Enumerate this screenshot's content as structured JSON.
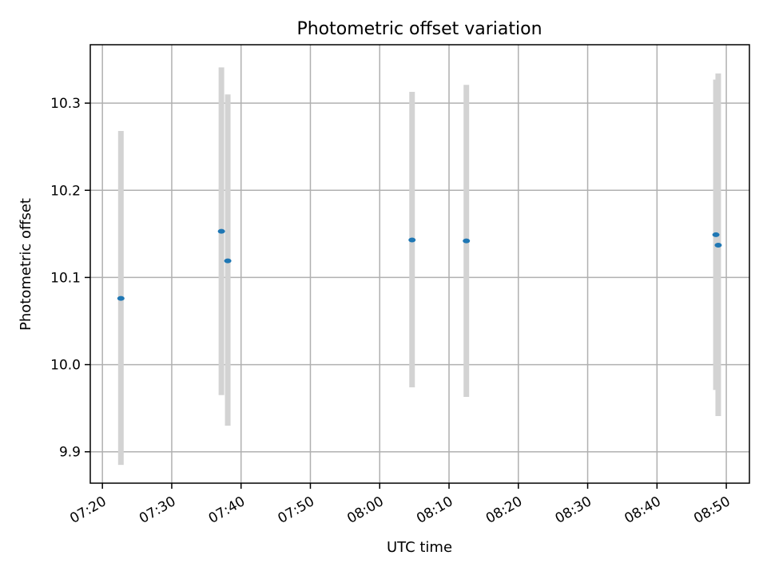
{
  "chart_data": {
    "type": "scatter",
    "title": "Photometric offset variation",
    "xlabel": "UTC time",
    "ylabel": "Photometric offset",
    "grid": true,
    "xlim": [
      "07:18:15",
      "08:53:20"
    ],
    "ylim": [
      9.864,
      10.367
    ],
    "x_ticks": [
      "07:20",
      "07:30",
      "07:40",
      "07:50",
      "08:00",
      "08:10",
      "08:20",
      "08:30",
      "08:40",
      "08:50"
    ],
    "y_ticks": [
      9.9,
      10.0,
      10.1,
      10.2,
      10.3
    ],
    "y_tick_labels": [
      "9.9",
      "10.0",
      "10.1",
      "10.2",
      "10.3"
    ],
    "marker_color": "#1f77b4",
    "errorbar_color": "#d3d3d3",
    "points": [
      {
        "x": "07:22:40",
        "y": 10.076,
        "y_low": 9.885,
        "y_high": 10.268
      },
      {
        "x": "07:37:10",
        "y": 10.153,
        "y_low": 9.965,
        "y_high": 10.341
      },
      {
        "x": "07:38:05",
        "y": 10.119,
        "y_low": 9.93,
        "y_high": 10.31
      },
      {
        "x": "08:04:40",
        "y": 10.143,
        "y_low": 9.974,
        "y_high": 10.313
      },
      {
        "x": "08:12:30",
        "y": 10.142,
        "y_low": 9.963,
        "y_high": 10.321
      },
      {
        "x": "08:48:30",
        "y": 10.149,
        "y_low": 9.971,
        "y_high": 10.327
      },
      {
        "x": "08:48:50",
        "y": 10.137,
        "y_low": 9.941,
        "y_high": 10.334
      }
    ]
  }
}
